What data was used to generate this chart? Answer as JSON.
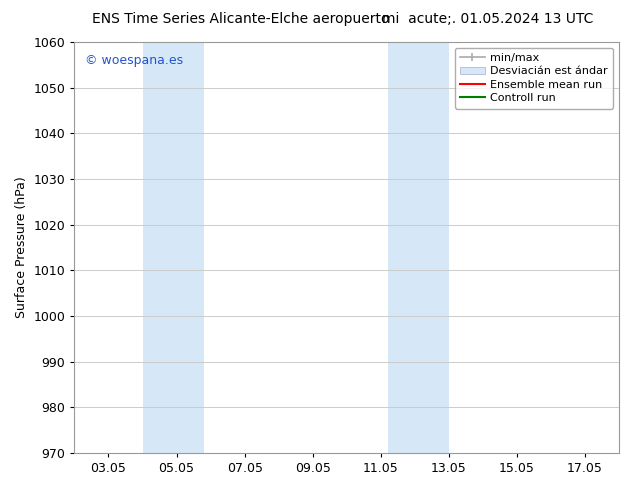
{
  "title_left": "ENS Time Series Alicante-Elche aeropuerto",
  "title_right": "mi  acute;. 01.05.2024 13 UTC",
  "ylabel": "Surface Pressure (hPa)",
  "ylim": [
    970,
    1060
  ],
  "yticks": [
    970,
    980,
    990,
    1000,
    1010,
    1020,
    1030,
    1040,
    1050,
    1060
  ],
  "xtick_labels": [
    "03.05",
    "05.05",
    "07.05",
    "09.05",
    "11.05",
    "13.05",
    "15.05",
    "17.05"
  ],
  "xtick_positions": [
    3,
    5,
    7,
    9,
    11,
    13,
    15,
    17
  ],
  "xmin": 2.0,
  "xmax": 18.0,
  "shade_regions": [
    {
      "xstart": 4.0,
      "xend": 5.8,
      "color": "#d6e8f7"
    },
    {
      "xstart": 11.2,
      "xend": 13.0,
      "color": "#d6e8f7"
    }
  ],
  "watermark_text": "© woespana.es",
  "watermark_color": "#2255cc",
  "bg_color": "#ffffff",
  "grid_color": "#cccccc",
  "title_fontsize": 10,
  "label_fontsize": 9,
  "tick_fontsize": 9,
  "legend_fontsize": 8
}
